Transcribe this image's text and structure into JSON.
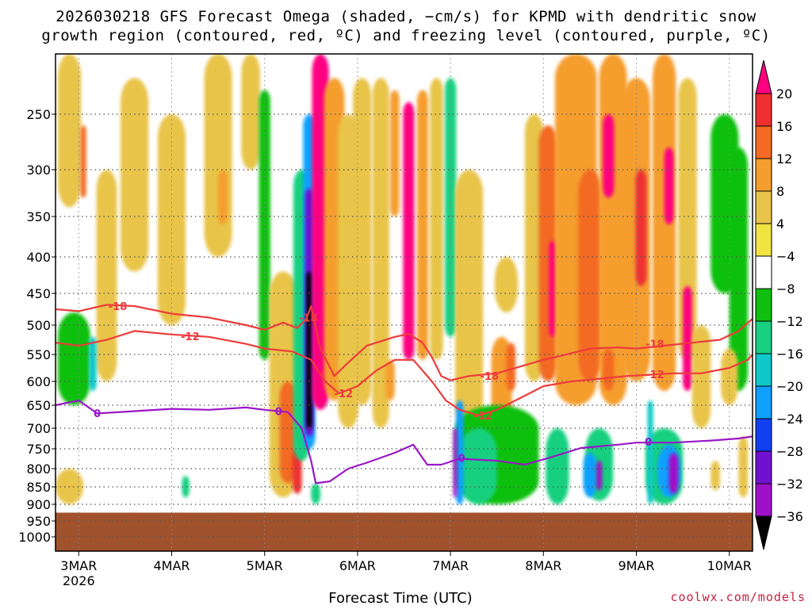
{
  "title_line1": "2026030218 GFS Forecast Omega (shaded, −cm/s) for KPMD with dendritic snow",
  "title_line2": "growth region (contoured, red, ºC) and freezing level (contoured, purple, ºC)",
  "credit": "coolwx.com/models",
  "chart_data": {
    "type": "heatmap",
    "title": "2026030218 GFS Forecast Omega (shaded, −cm/s) for KPMD with dendritic snow growth region (contoured, red, ºC) and freezing level (contoured, purple, ºC)",
    "xlabel": "Forecast Time (UTC)",
    "ylabel": "",
    "y_axis": {
      "ticks": [
        250,
        300,
        350,
        400,
        450,
        500,
        550,
        600,
        650,
        700,
        750,
        800,
        850,
        900,
        950,
        1000
      ],
      "range": [
        200,
        1000
      ]
    },
    "x_axis": {
      "ticks": [
        "3MAR",
        "4MAR",
        "5MAR",
        "6MAR",
        "7MAR",
        "8MAR",
        "9MAR",
        "10MAR"
      ],
      "tick_days": [
        3,
        4,
        5,
        6,
        7,
        8,
        9,
        10
      ],
      "range_days": [
        2.75,
        10.25
      ],
      "year_label": "2026"
    },
    "surface_pressure": 925,
    "colorbar": {
      "labels": [
        "20",
        "16",
        "12",
        "8",
        "4",
        "−4",
        "−8",
        "−12",
        "−16",
        "−20",
        "−24",
        "−28",
        "−32",
        "−36"
      ],
      "levels": [
        20,
        16,
        12,
        8,
        4,
        -4,
        -8,
        -12,
        -16,
        -20,
        -24,
        -28,
        -32,
        -36
      ],
      "colors": [
        "#ff0080",
        "#ee3030",
        "#f36a24",
        "#f59e2d",
        "#e8c44a",
        "#f1e342",
        "#ffffff",
        "#10c010",
        "#19d080",
        "#10c8c8",
        "#10a0ff",
        "#1040f0",
        "#7010d0",
        "#a010c8",
        "#a0a0a0",
        "#000000"
      ]
    },
    "contours": [
      {
        "label": "-18",
        "color": "#ee3b3b",
        "points": [
          [
            2.75,
            475
          ],
          [
            3.0,
            478
          ],
          [
            3.3,
            468
          ],
          [
            3.6,
            470
          ],
          [
            4.0,
            482
          ],
          [
            4.4,
            488
          ],
          [
            4.8,
            500
          ],
          [
            5.0,
            508
          ],
          [
            5.2,
            496
          ],
          [
            5.35,
            505
          ],
          [
            5.45,
            490
          ],
          [
            5.5,
            470
          ],
          [
            5.6,
            540
          ],
          [
            5.75,
            590
          ],
          [
            5.9,
            565
          ],
          [
            6.1,
            535
          ],
          [
            6.4,
            520
          ],
          [
            6.55,
            515
          ],
          [
            6.7,
            530
          ],
          [
            6.8,
            555
          ],
          [
            6.9,
            590
          ],
          [
            7.0,
            598
          ],
          [
            7.2,
            590
          ],
          [
            7.5,
            585
          ],
          [
            7.8,
            570
          ],
          [
            8.0,
            560
          ],
          [
            8.2,
            552
          ],
          [
            8.5,
            540
          ],
          [
            8.8,
            538
          ],
          [
            9.0,
            540
          ],
          [
            9.3,
            535
          ],
          [
            9.6,
            530
          ],
          [
            9.9,
            525
          ],
          [
            10.1,
            510
          ],
          [
            10.25,
            490
          ]
        ]
      },
      {
        "label": "-12",
        "color": "#ee3b3b",
        "points": [
          [
            2.75,
            530
          ],
          [
            3.0,
            535
          ],
          [
            3.3,
            525
          ],
          [
            3.6,
            510
          ],
          [
            4.0,
            516
          ],
          [
            4.4,
            520
          ],
          [
            4.8,
            532
          ],
          [
            5.0,
            540
          ],
          [
            5.3,
            545
          ],
          [
            5.5,
            560
          ],
          [
            5.65,
            600
          ],
          [
            5.8,
            625
          ],
          [
            6.0,
            610
          ],
          [
            6.2,
            580
          ],
          [
            6.4,
            560
          ],
          [
            6.6,
            560
          ],
          [
            6.8,
            600
          ],
          [
            6.95,
            640
          ],
          [
            7.1,
            660
          ],
          [
            7.3,
            672
          ],
          [
            7.5,
            660
          ],
          [
            7.8,
            630
          ],
          [
            8.0,
            610
          ],
          [
            8.3,
            600
          ],
          [
            8.6,
            595
          ],
          [
            8.9,
            590
          ],
          [
            9.1,
            588
          ],
          [
            9.4,
            585
          ],
          [
            9.7,
            585
          ],
          [
            10.0,
            575
          ],
          [
            10.2,
            560
          ],
          [
            10.25,
            550
          ]
        ]
      },
      {
        "label": "0",
        "color": "#9a16c8",
        "points": [
          [
            2.75,
            650
          ],
          [
            3.0,
            640
          ],
          [
            3.2,
            668
          ],
          [
            3.6,
            663
          ],
          [
            4.0,
            658
          ],
          [
            4.4,
            660
          ],
          [
            4.8,
            655
          ],
          [
            5.0,
            660
          ],
          [
            5.25,
            665
          ],
          [
            5.4,
            700
          ],
          [
            5.5,
            780
          ],
          [
            5.55,
            840
          ],
          [
            5.7,
            835
          ],
          [
            5.9,
            800
          ],
          [
            6.1,
            785
          ],
          [
            6.4,
            760
          ],
          [
            6.6,
            740
          ],
          [
            6.75,
            790
          ],
          [
            6.9,
            790
          ],
          [
            7.1,
            775
          ],
          [
            7.5,
            780
          ],
          [
            7.8,
            790
          ],
          [
            8.1,
            770
          ],
          [
            8.4,
            748
          ],
          [
            8.8,
            740
          ],
          [
            9.0,
            735
          ],
          [
            9.4,
            735
          ],
          [
            9.8,
            730
          ],
          [
            10.1,
            725
          ],
          [
            10.25,
            720
          ]
        ]
      }
    ],
    "contour_labels": [
      {
        "text": "-18",
        "day": 3.42,
        "p": 470,
        "color": "#ee3b3b"
      },
      {
        "text": "-12",
        "day": 4.2,
        "p": 519,
        "color": "#ee3b3b"
      },
      {
        "text": "-18",
        "day": 5.47,
        "p": 488,
        "color": "#ee3b3b"
      },
      {
        "text": "-12",
        "day": 5.85,
        "p": 625,
        "color": "#ee3b3b"
      },
      {
        "text": "-18",
        "day": 7.42,
        "p": 590,
        "color": "#ee3b3b"
      },
      {
        "text": "-12",
        "day": 7.35,
        "p": 672,
        "color": "#ee3b3b"
      },
      {
        "text": "-18",
        "day": 9.2,
        "p": 532,
        "color": "#ee3b3b"
      },
      {
        "text": "-12",
        "day": 9.2,
        "p": 587,
        "color": "#ee3b3b"
      },
      {
        "text": "0",
        "day": 3.2,
        "p": 667,
        "color": "#9a16c8"
      },
      {
        "text": "0",
        "day": 5.15,
        "p": 663,
        "color": "#9a16c8"
      },
      {
        "text": "0",
        "day": 7.12,
        "p": 773,
        "color": "#9a16c8"
      },
      {
        "text": "0",
        "day": 9.13,
        "p": 733,
        "color": "#9a16c8"
      }
    ],
    "omega_features": [
      {
        "day": 2.9,
        "p_top": 200,
        "p_bot": 340,
        "width": 0.25,
        "value": 4
      },
      {
        "day": 3.05,
        "p_top": 260,
        "p_bot": 330,
        "width": 0.06,
        "value": 14
      },
      {
        "day": 2.95,
        "p_top": 480,
        "p_bot": 650,
        "width": 0.35,
        "value": -6
      },
      {
        "day": 3.3,
        "p_top": 300,
        "p_bot": 600,
        "width": 0.22,
        "value": 4
      },
      {
        "day": 3.15,
        "p_top": 520,
        "p_bot": 620,
        "width": 0.08,
        "value": -12
      },
      {
        "day": 2.9,
        "p_top": 800,
        "p_bot": 900,
        "width": 0.3,
        "value": 4
      },
      {
        "day": 3.6,
        "p_top": 220,
        "p_bot": 420,
        "width": 0.3,
        "value": 4
      },
      {
        "day": 4.0,
        "p_top": 250,
        "p_bot": 500,
        "width": 0.3,
        "value": 4
      },
      {
        "day": 4.5,
        "p_top": 200,
        "p_bot": 400,
        "width": 0.3,
        "value": 4
      },
      {
        "day": 4.55,
        "p_top": 300,
        "p_bot": 360,
        "width": 0.1,
        "value": 8
      },
      {
        "day": 4.15,
        "p_top": 820,
        "p_bot": 880,
        "width": 0.08,
        "value": -8
      },
      {
        "day": 4.85,
        "p_top": 200,
        "p_bot": 300,
        "width": 0.2,
        "value": 4
      },
      {
        "day": 5.0,
        "p_top": 230,
        "p_bot": 560,
        "width": 0.12,
        "value": -6
      },
      {
        "day": 5.2,
        "p_top": 420,
        "p_bot": 880,
        "width": 0.3,
        "value": 6
      },
      {
        "day": 5.25,
        "p_top": 600,
        "p_bot": 840,
        "width": 0.18,
        "value": 12
      },
      {
        "day": 5.35,
        "p_top": 750,
        "p_bot": 870,
        "width": 0.1,
        "value": 16
      },
      {
        "day": 5.4,
        "p_top": 300,
        "p_bot": 780,
        "width": 0.18,
        "value": -10
      },
      {
        "day": 5.48,
        "p_top": 250,
        "p_bot": 750,
        "width": 0.13,
        "value": -18
      },
      {
        "day": 5.48,
        "p_top": 320,
        "p_bot": 720,
        "width": 0.09,
        "value": -26
      },
      {
        "day": 5.48,
        "p_top": 420,
        "p_bot": 700,
        "width": 0.06,
        "value": -40
      },
      {
        "day": 5.6,
        "p_top": 200,
        "p_bot": 660,
        "width": 0.18,
        "value": 22
      },
      {
        "day": 5.75,
        "p_top": 220,
        "p_bot": 640,
        "width": 0.22,
        "value": 10
      },
      {
        "day": 5.9,
        "p_top": 250,
        "p_bot": 700,
        "width": 0.22,
        "value": 6
      },
      {
        "day": 5.55,
        "p_top": 840,
        "p_bot": 900,
        "width": 0.1,
        "value": -8
      },
      {
        "day": 6.05,
        "p_top": 220,
        "p_bot": 650,
        "width": 0.2,
        "value": 4
      },
      {
        "day": 6.25,
        "p_top": 220,
        "p_bot": 700,
        "width": 0.18,
        "value": 4
      },
      {
        "day": 6.35,
        "p_top": 560,
        "p_bot": 640,
        "width": 0.1,
        "value": 8
      },
      {
        "day": 6.4,
        "p_top": 230,
        "p_bot": 350,
        "width": 0.1,
        "value": 8
      },
      {
        "day": 6.55,
        "p_top": 240,
        "p_bot": 560,
        "width": 0.12,
        "value": 24
      },
      {
        "day": 6.7,
        "p_top": 230,
        "p_bot": 560,
        "width": 0.12,
        "value": 10
      },
      {
        "day": 6.85,
        "p_top": 220,
        "p_bot": 560,
        "width": 0.14,
        "value": 6
      },
      {
        "day": 7.0,
        "p_top": 220,
        "p_bot": 520,
        "width": 0.12,
        "value": -8
      },
      {
        "day": 7.2,
        "p_top": 300,
        "p_bot": 700,
        "width": 0.3,
        "value": 6
      },
      {
        "day": 7.55,
        "p_top": 520,
        "p_bot": 700,
        "width": 0.22,
        "value": 8
      },
      {
        "day": 7.6,
        "p_top": 400,
        "p_bot": 480,
        "width": 0.25,
        "value": 6
      },
      {
        "day": 7.65,
        "p_top": 530,
        "p_bot": 620,
        "width": 0.1,
        "value": 14
      },
      {
        "day": 7.5,
        "p_top": 650,
        "p_bot": 900,
        "width": 0.9,
        "value": -7
      },
      {
        "day": 7.3,
        "p_top": 700,
        "p_bot": 900,
        "width": 0.4,
        "value": -10
      },
      {
        "day": 7.1,
        "p_top": 640,
        "p_bot": 900,
        "width": 0.08,
        "value": -16
      },
      {
        "day": 7.05,
        "p_top": 700,
        "p_bot": 880,
        "width": 0.04,
        "value": -30
      },
      {
        "day": 7.9,
        "p_top": 250,
        "p_bot": 600,
        "width": 0.2,
        "value": 6
      },
      {
        "day": 8.05,
        "p_top": 260,
        "p_bot": 600,
        "width": 0.2,
        "value": 12
      },
      {
        "day": 8.1,
        "p_top": 380,
        "p_bot": 520,
        "width": 0.08,
        "value": 22
      },
      {
        "day": 8.35,
        "p_top": 200,
        "p_bot": 650,
        "width": 0.45,
        "value": 8
      },
      {
        "day": 8.5,
        "p_top": 300,
        "p_bot": 600,
        "width": 0.25,
        "value": 12
      },
      {
        "day": 8.75,
        "p_top": 200,
        "p_bot": 650,
        "width": 0.3,
        "value": 10
      },
      {
        "day": 8.7,
        "p_top": 250,
        "p_bot": 330,
        "width": 0.12,
        "value": 20
      },
      {
        "day": 8.7,
        "p_top": 540,
        "p_bot": 620,
        "width": 0.12,
        "value": 14
      },
      {
        "day": 8.6,
        "p_top": 700,
        "p_bot": 890,
        "width": 0.3,
        "value": -10
      },
      {
        "day": 8.5,
        "p_top": 760,
        "p_bot": 880,
        "width": 0.14,
        "value": -16
      },
      {
        "day": 8.6,
        "p_top": 780,
        "p_bot": 860,
        "width": 0.06,
        "value": -30
      },
      {
        "day": 8.15,
        "p_top": 700,
        "p_bot": 900,
        "width": 0.25,
        "value": -8
      },
      {
        "day": 9.0,
        "p_top": 220,
        "p_bot": 600,
        "width": 0.3,
        "value": 10
      },
      {
        "day": 9.05,
        "p_top": 300,
        "p_bot": 440,
        "width": 0.12,
        "value": 18
      },
      {
        "day": 9.3,
        "p_top": 200,
        "p_bot": 620,
        "width": 0.25,
        "value": 8
      },
      {
        "day": 9.35,
        "p_top": 280,
        "p_bot": 360,
        "width": 0.1,
        "value": 22
      },
      {
        "day": 9.55,
        "p_top": 220,
        "p_bot": 560,
        "width": 0.2,
        "value": 6
      },
      {
        "day": 9.55,
        "p_top": 440,
        "p_bot": 620,
        "width": 0.1,
        "value": 24
      },
      {
        "day": 9.7,
        "p_top": 500,
        "p_bot": 700,
        "width": 0.2,
        "value": 6
      },
      {
        "day": 9.3,
        "p_top": 700,
        "p_bot": 900,
        "width": 0.4,
        "value": -10
      },
      {
        "day": 9.35,
        "p_top": 740,
        "p_bot": 880,
        "width": 0.25,
        "value": -18
      },
      {
        "day": 9.4,
        "p_top": 760,
        "p_bot": 870,
        "width": 0.1,
        "value": -28
      },
      {
        "day": 9.15,
        "p_top": 640,
        "p_bot": 900,
        "width": 0.06,
        "value": -14
      },
      {
        "day": 9.95,
        "p_top": 250,
        "p_bot": 450,
        "width": 0.3,
        "value": -6
      },
      {
        "day": 10.1,
        "p_top": 280,
        "p_bot": 620,
        "width": 0.2,
        "value": -7
      },
      {
        "day": 10.0,
        "p_top": 540,
        "p_bot": 650,
        "width": 0.18,
        "value": 5
      },
      {
        "day": 9.85,
        "p_top": 780,
        "p_bot": 860,
        "width": 0.1,
        "value": 5
      },
      {
        "day": 10.15,
        "p_top": 720,
        "p_bot": 880,
        "width": 0.1,
        "value": 5
      }
    ]
  }
}
